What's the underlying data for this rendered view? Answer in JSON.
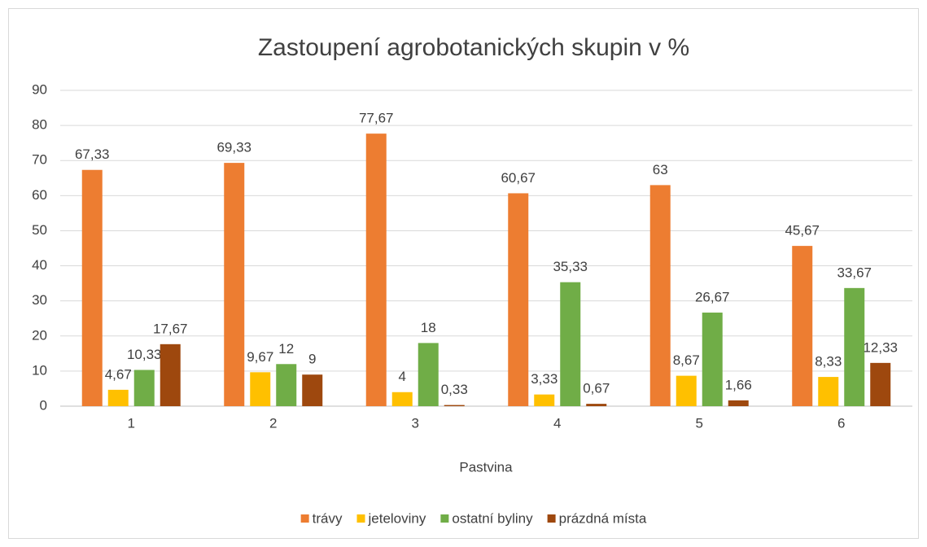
{
  "chart_data": {
    "type": "bar",
    "title": "Zastoupení agrobotanických skupin v %",
    "x_label": "Pastvina",
    "categories": [
      "1",
      "2",
      "3",
      "4",
      "5",
      "6"
    ],
    "series": [
      {
        "name": "trávy",
        "color": "#ed7d31",
        "values": [
          67.33,
          69.33,
          77.67,
          60.67,
          63,
          45.67
        ],
        "value_labels": [
          "67,33",
          "69,33",
          "77,67",
          "60,67",
          "63",
          "45,67"
        ]
      },
      {
        "name": "jeteloviny",
        "color": "#ffc000",
        "values": [
          4.67,
          9.67,
          4,
          3.33,
          8.67,
          8.33
        ],
        "value_labels": [
          "4,67",
          "9,67",
          "4",
          "3,33",
          "8,67",
          "8,33"
        ]
      },
      {
        "name": "ostatní byliny",
        "color": "#70ad47",
        "values": [
          10.33,
          12,
          18,
          35.33,
          26.67,
          33.67
        ],
        "value_labels": [
          "10,33",
          "12",
          "18",
          "35,33",
          "26,67",
          "33,67"
        ]
      },
      {
        "name": "prázdná místa",
        "color": "#9e480e",
        "values": [
          17.67,
          9,
          0.33,
          0.67,
          1.66,
          12.33
        ],
        "value_labels": [
          "17,67",
          "9",
          "0,33",
          "0,67",
          "1,66",
          "12,33"
        ]
      }
    ],
    "ylim": [
      0,
      90
    ],
    "yticks": [
      0,
      10,
      20,
      30,
      40,
      50,
      60,
      70,
      80,
      90
    ],
    "grid": true,
    "legend": "bottom"
  }
}
